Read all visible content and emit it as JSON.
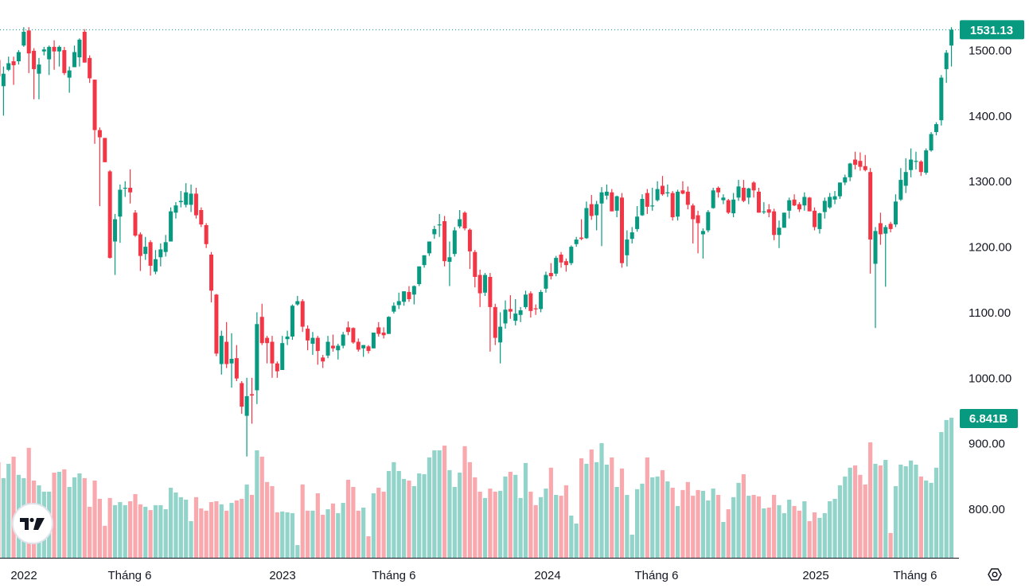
{
  "chart_data": {
    "type": "candlestick",
    "interval": "weekly",
    "title": "",
    "colors": {
      "up": "#089981",
      "down": "#F23645",
      "volume_up": "#92D4C9",
      "volume_down": "#F9A9AE",
      "badge": "#089981"
    },
    "price_axis": {
      "ticks": [
        "1500.00",
        "1400.00",
        "1300.00",
        "1200.00",
        "1100.00",
        "1000.00",
        "900.00",
        "800.00"
      ],
      "ylim": [
        720,
        1543
      ]
    },
    "last_price_label": "1531.13",
    "last_price": 1531.13,
    "volume_label": "6.841B",
    "volume_unit": "B",
    "time_axis": {
      "labels": [
        "2022",
        "Tháng 6",
        "2023",
        "Tháng 6",
        "2024",
        "Tháng 6",
        "2025",
        "Tháng 6"
      ]
    },
    "ohlc": [
      [
        1485,
        1490,
        1455,
        1460
      ],
      [
        1445,
        1475,
        1400,
        1464
      ],
      [
        1470,
        1490,
        1468,
        1480
      ],
      [
        1483,
        1490,
        1447,
        1477
      ],
      [
        1483,
        1500,
        1478,
        1497
      ],
      [
        1507,
        1535,
        1505,
        1528
      ],
      [
        1530,
        1535,
        1465,
        1495
      ],
      [
        1499,
        1503,
        1425,
        1471
      ],
      [
        1464,
        1488,
        1425,
        1478
      ],
      [
        1498,
        1505,
        1492,
        1501
      ],
      [
        1486,
        1507,
        1462,
        1505
      ],
      [
        1505,
        1515,
        1470,
        1498
      ],
      [
        1498,
        1507,
        1475,
        1505
      ],
      [
        1500,
        1505,
        1462,
        1465
      ],
      [
        1458,
        1475,
        1435,
        1469
      ],
      [
        1474,
        1507,
        1474,
        1497
      ],
      [
        1489,
        1518,
        1475,
        1516
      ],
      [
        1528,
        1532,
        1481,
        1481
      ],
      [
        1488,
        1492,
        1450,
        1457
      ],
      [
        1455,
        1455,
        1357,
        1378
      ],
      [
        1378,
        1382,
        1262,
        1367
      ],
      [
        1366,
        1366,
        1329,
        1329
      ],
      [
        1315,
        1317,
        1182,
        1183
      ],
      [
        1208,
        1250,
        1157,
        1242
      ],
      [
        1246,
        1295,
        1206,
        1287
      ],
      [
        1289,
        1300,
        1276,
        1290
      ],
      [
        1290,
        1318,
        1266,
        1283
      ],
      [
        1252,
        1256,
        1215,
        1217
      ],
      [
        1219,
        1222,
        1163,
        1186
      ],
      [
        1189,
        1215,
        1180,
        1200
      ],
      [
        1207,
        1210,
        1156,
        1171
      ],
      [
        1162,
        1195,
        1158,
        1181
      ],
      [
        1184,
        1205,
        1170,
        1196
      ],
      [
        1192,
        1218,
        1185,
        1207
      ],
      [
        1208,
        1260,
        1208,
        1254
      ],
      [
        1252,
        1268,
        1243,
        1263
      ],
      [
        1268,
        1285,
        1260,
        1270
      ],
      [
        1264,
        1297,
        1260,
        1283
      ],
      [
        1264,
        1295,
        1253,
        1281
      ],
      [
        1281,
        1290,
        1243,
        1248
      ],
      [
        1256,
        1260,
        1230,
        1234
      ],
      [
        1233,
        1236,
        1198,
        1204
      ],
      [
        1188,
        1192,
        1115,
        1133
      ],
      [
        1127,
        1128,
        1033,
        1037
      ],
      [
        1021,
        1072,
        1005,
        1064
      ],
      [
        1055,
        1085,
        1015,
        1021
      ],
      [
        1022,
        1068,
        985,
        1029
      ],
      [
        1030,
        1050,
        995,
        999
      ],
      [
        992,
        995,
        945,
        956
      ],
      [
        942,
        1000,
        880,
        972
      ],
      [
        975,
        1000,
        930,
        973
      ],
      [
        981,
        1100,
        960,
        1082
      ],
      [
        1093,
        1113,
        1050,
        1053
      ],
      [
        1061,
        1064,
        1022,
        1053
      ],
      [
        1055,
        1064,
        1000,
        1022
      ],
      [
        1022,
        1025,
        1000,
        1010
      ],
      [
        1012,
        1064,
        1012,
        1053
      ],
      [
        1059,
        1072,
        1050,
        1063
      ],
      [
        1063,
        1112,
        1058,
        1110
      ],
      [
        1112,
        1125,
        1110,
        1117
      ],
      [
        1117,
        1120,
        1070,
        1078
      ],
      [
        1075,
        1080,
        1042,
        1057
      ],
      [
        1052,
        1070,
        1035,
        1061
      ],
      [
        1061,
        1064,
        1020,
        1041
      ],
      [
        1031,
        1035,
        1015,
        1025
      ],
      [
        1034,
        1064,
        1030,
        1055
      ],
      [
        1049,
        1066,
        1040,
        1045
      ],
      [
        1042,
        1052,
        1028,
        1049
      ],
      [
        1049,
        1070,
        1045,
        1066
      ],
      [
        1077,
        1086,
        1065,
        1070
      ],
      [
        1076,
        1077,
        1052,
        1054
      ],
      [
        1055,
        1060,
        1040,
        1043
      ],
      [
        1045,
        1050,
        1032,
        1050
      ],
      [
        1048,
        1050,
        1037,
        1041
      ],
      [
        1045,
        1069,
        1045,
        1069
      ],
      [
        1077,
        1085,
        1063,
        1067
      ],
      [
        1069,
        1077,
        1060,
        1065
      ],
      [
        1067,
        1094,
        1067,
        1093
      ],
      [
        1101,
        1115,
        1098,
        1110
      ],
      [
        1111,
        1130,
        1105,
        1117
      ],
      [
        1116,
        1132,
        1110,
        1132
      ],
      [
        1131,
        1140,
        1116,
        1120
      ],
      [
        1127,
        1141,
        1112,
        1140
      ],
      [
        1143,
        1170,
        1140,
        1170
      ],
      [
        1172,
        1187,
        1168,
        1187
      ],
      [
        1190,
        1208,
        1186,
        1208
      ],
      [
        1219,
        1232,
        1212,
        1227
      ],
      [
        1234,
        1250,
        1215,
        1234
      ],
      [
        1239,
        1247,
        1170,
        1178
      ],
      [
        1177,
        1208,
        1140,
        1184
      ],
      [
        1189,
        1230,
        1185,
        1225
      ],
      [
        1231,
        1256,
        1228,
        1242
      ],
      [
        1252,
        1254,
        1225,
        1228
      ],
      [
        1226,
        1228,
        1166,
        1193
      ],
      [
        1192,
        1195,
        1138,
        1154
      ],
      [
        1157,
        1165,
        1108,
        1129
      ],
      [
        1130,
        1160,
        1125,
        1157
      ],
      [
        1154,
        1160,
        1040,
        1108
      ],
      [
        1108,
        1113,
        1050,
        1061
      ],
      [
        1054,
        1100,
        1022,
        1078
      ],
      [
        1083,
        1118,
        1075,
        1104
      ],
      [
        1105,
        1126,
        1090,
        1101
      ],
      [
        1087,
        1120,
        1080,
        1098
      ],
      [
        1096,
        1108,
        1085,
        1103
      ],
      [
        1108,
        1133,
        1105,
        1127
      ],
      [
        1129,
        1132,
        1092,
        1102
      ],
      [
        1106,
        1112,
        1096,
        1105
      ],
      [
        1105,
        1134,
        1100,
        1131
      ],
      [
        1136,
        1162,
        1130,
        1157
      ],
      [
        1160,
        1175,
        1150,
        1155
      ],
      [
        1159,
        1186,
        1155,
        1183
      ],
      [
        1188,
        1192,
        1168,
        1176
      ],
      [
        1178,
        1182,
        1162,
        1172
      ],
      [
        1175,
        1202,
        1172,
        1200
      ],
      [
        1204,
        1215,
        1200,
        1211
      ],
      [
        1214,
        1242,
        1210,
        1212
      ],
      [
        1213,
        1269,
        1212,
        1259
      ],
      [
        1265,
        1279,
        1241,
        1247
      ],
      [
        1248,
        1270,
        1225,
        1265
      ],
      [
        1266,
        1291,
        1201,
        1283
      ],
      [
        1278,
        1295,
        1272,
        1284
      ],
      [
        1283,
        1288,
        1254,
        1254
      ],
      [
        1255,
        1278,
        1245,
        1277
      ],
      [
        1275,
        1282,
        1168,
        1175
      ],
      [
        1187,
        1225,
        1170,
        1211
      ],
      [
        1212,
        1230,
        1205,
        1222
      ],
      [
        1227,
        1262,
        1223,
        1246
      ],
      [
        1248,
        1280,
        1247,
        1273
      ],
      [
        1282,
        1288,
        1250,
        1261
      ],
      [
        1263,
        1290,
        1255,
        1263
      ],
      [
        1271,
        1300,
        1269,
        1288
      ],
      [
        1293,
        1308,
        1278,
        1280
      ],
      [
        1283,
        1295,
        1276,
        1283
      ],
      [
        1282,
        1285,
        1240,
        1245
      ],
      [
        1246,
        1287,
        1240,
        1284
      ],
      [
        1286,
        1300,
        1280,
        1281
      ],
      [
        1284,
        1292,
        1257,
        1264
      ],
      [
        1263,
        1266,
        1205,
        1242
      ],
      [
        1248,
        1255,
        1190,
        1236
      ],
      [
        1219,
        1228,
        1182,
        1224
      ],
      [
        1225,
        1256,
        1222,
        1253
      ],
      [
        1259,
        1290,
        1258,
        1286
      ],
      [
        1290,
        1292,
        1275,
        1283
      ],
      [
        1271,
        1280,
        1265,
        1275
      ],
      [
        1271,
        1273,
        1250,
        1252
      ],
      [
        1251,
        1282,
        1245,
        1272
      ],
      [
        1275,
        1302,
        1270,
        1292
      ],
      [
        1290,
        1302,
        1268,
        1270
      ],
      [
        1275,
        1290,
        1265,
        1289
      ],
      [
        1298,
        1300,
        1275,
        1286
      ],
      [
        1284,
        1290,
        1252,
        1252
      ],
      [
        1254,
        1268,
        1250,
        1254
      ],
      [
        1257,
        1265,
        1245,
        1252
      ],
      [
        1254,
        1258,
        1210,
        1218
      ],
      [
        1218,
        1240,
        1198,
        1229
      ],
      [
        1229,
        1252,
        1229,
        1252
      ],
      [
        1255,
        1275,
        1243,
        1271
      ],
      [
        1272,
        1280,
        1262,
        1263
      ],
      [
        1265,
        1268,
        1253,
        1257
      ],
      [
        1263,
        1283,
        1255,
        1276
      ],
      [
        1275,
        1276,
        1254,
        1254
      ],
      [
        1255,
        1260,
        1225,
        1230
      ],
      [
        1227,
        1252,
        1220,
        1251
      ],
      [
        1253,
        1275,
        1243,
        1270
      ],
      [
        1260,
        1282,
        1258,
        1276
      ],
      [
        1272,
        1285,
        1265,
        1277
      ],
      [
        1277,
        1298,
        1273,
        1298
      ],
      [
        1298,
        1310,
        1294,
        1306
      ],
      [
        1306,
        1328,
        1300,
        1327
      ],
      [
        1333,
        1345,
        1318,
        1325
      ],
      [
        1331,
        1344,
        1316,
        1322
      ],
      [
        1323,
        1340,
        1315,
        1317
      ],
      [
        1314,
        1320,
        1159,
        1211
      ],
      [
        1174,
        1230,
        1076,
        1224
      ],
      [
        1236,
        1252,
        1203,
        1219
      ],
      [
        1220,
        1233,
        1139,
        1230
      ],
      [
        1235,
        1238,
        1222,
        1227
      ],
      [
        1234,
        1280,
        1230,
        1269
      ],
      [
        1272,
        1320,
        1270,
        1302
      ],
      [
        1293,
        1335,
        1282,
        1314
      ],
      [
        1317,
        1350,
        1306,
        1333
      ],
      [
        1331,
        1345,
        1318,
        1331
      ],
      [
        1330,
        1332,
        1308,
        1314
      ],
      [
        1313,
        1350,
        1310,
        1347
      ],
      [
        1347,
        1375,
        1345,
        1372
      ],
      [
        1375,
        1390,
        1370,
        1387
      ],
      [
        1393,
        1462,
        1385,
        1458
      ],
      [
        1471,
        1500,
        1450,
        1496
      ],
      [
        1507,
        1535,
        1475,
        1531.13
      ]
    ],
    "volume": [
      4.67,
      3.89,
      4.59,
      4.94,
      4.05,
      3.89,
      5.37,
      3.77,
      3.54,
      3.23,
      3.23,
      4.16,
      4.2,
      4.32,
      3.46,
      3.93,
      4.12,
      3.89,
      2.49,
      3.77,
      2.88,
      1.56,
      2.92,
      2.57,
      2.72,
      2.57,
      2.76,
      3.11,
      2.61,
      2.49,
      2.33,
      2.57,
      2.57,
      2.37,
      3.42,
      3.19,
      2.96,
      2.84,
      1.79,
      2.96,
      2.41,
      2.3,
      2.72,
      2.76,
      2.61,
      2.3,
      2.68,
      2.8,
      2.88,
      3.58,
      3.07,
      5.25,
      4.94,
      3.7,
      3.5,
      2.22,
      2.26,
      2.22,
      2.18,
      0.62,
      3.58,
      2.3,
      2.3,
      3.15,
      2.1,
      2.37,
      2.65,
      2.18,
      2.68,
      3.81,
      3.46,
      2.3,
      2.45,
      1.05,
      3.15,
      3.42,
      3.23,
      4.24,
      4.67,
      4.24,
      3.85,
      3.77,
      3.5,
      4.12,
      4.08,
      4.9,
      5.25,
      5.25,
      5.48,
      4.28,
      3.46,
      4.16,
      5.45,
      4.67,
      3.93,
      3.23,
      2.92,
      3.38,
      3.23,
      3.27,
      3.97,
      4.2,
      4.05,
      2.92,
      4.63,
      3.23,
      2.57,
      2.96,
      3.38,
      4.4,
      3.07,
      3.03,
      3.54,
      2.06,
      1.67,
      4.86,
      4.59,
      5.29,
      4.67,
      5.6,
      4.55,
      4.9,
      3.46,
      4.36,
      3.07,
      1.13,
      3.35,
      3.62,
      4.9,
      3.93,
      3.97,
      4.28,
      3.73,
      3.42,
      2.53,
      3.31,
      3.7,
      3.03,
      3.31,
      3.27,
      2.8,
      3.38,
      3.07,
      1.75,
      2.37,
      2.96,
      3.66,
      4.08,
      3.03,
      3.07,
      3.0,
      2.41,
      2.45,
      3.07,
      2.57,
      2.18,
      2.84,
      2.53,
      2.3,
      2.76,
      1.79,
      2.22,
      1.95,
      2.18,
      2.76,
      2.88,
      3.54,
      3.97,
      4.4,
      4.51,
      4.05,
      3.58,
      5.64,
      4.59,
      4.51,
      4.78,
      1.21,
      3.5,
      4.55,
      4.47,
      4.75,
      4.55,
      3.97,
      3.77,
      3.66,
      4.4,
      6.14,
      6.73,
      6.841
    ],
    "logo": "TV"
  }
}
